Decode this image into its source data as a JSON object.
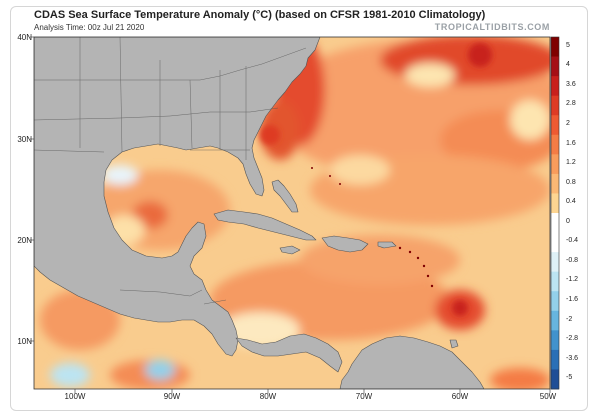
{
  "header": {
    "title": "CDAS Sea Surface Temperature Anomaly (°C) (based on CFSR 1981-2010 Climatology)",
    "subtitle": "Analysis Time: 00z Jul 21 2020",
    "brand": "TROPICALTIDBITS.COM"
  },
  "axes": {
    "lat_labels": [
      "40N",
      "30N",
      "20N",
      "10N"
    ],
    "lon_labels": [
      "100W",
      "90W",
      "80W",
      "70W",
      "60W",
      "50W"
    ]
  },
  "colorbar": {
    "labels": [
      "5",
      "4",
      "3.6",
      "2.8",
      "2",
      "1.6",
      "1.2",
      "0.8",
      "0.4",
      "0",
      "-0.4",
      "-0.8",
      "-1.2",
      "-1.6",
      "-2",
      "-2.8",
      "-3.6",
      "-5"
    ],
    "colors": [
      "#7f0000",
      "#a50f15",
      "#c8201c",
      "#de3b24",
      "#ee5a32",
      "#f47c45",
      "#f89c5c",
      "#fbb875",
      "#fdd592",
      "#ffffff",
      "#ffffff",
      "#dff1f7",
      "#bce4f2",
      "#93d0ea",
      "#67b5df",
      "#4192cd",
      "#2a6fb6",
      "#1f4e96"
    ]
  },
  "map": {
    "land_color": "#b4b4b4",
    "ocean_base_color": "#f9cc8e"
  }
}
